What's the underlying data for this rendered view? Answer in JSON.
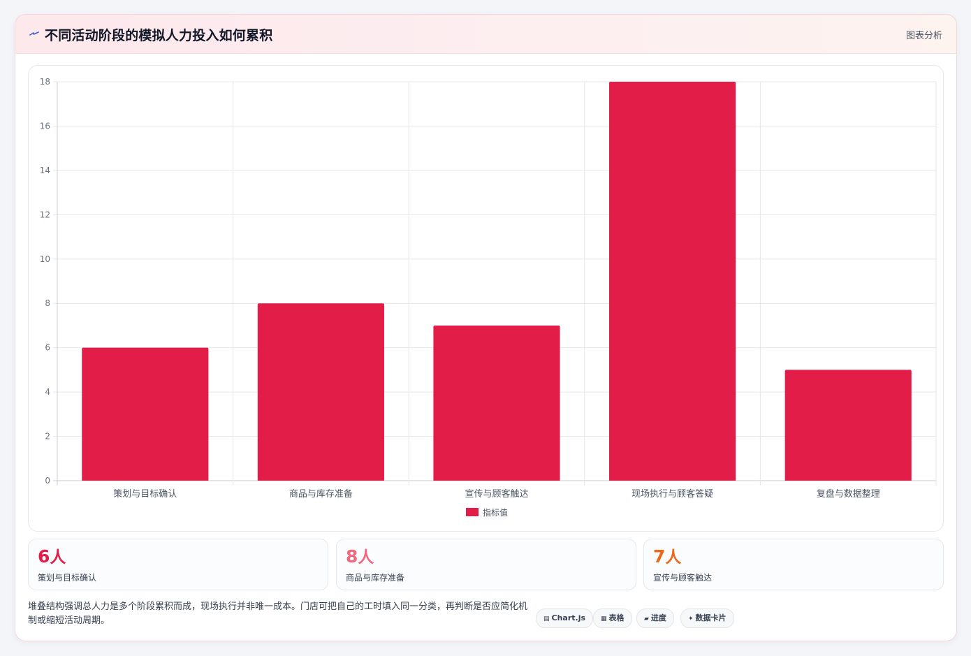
{
  "header": {
    "title": "不同活动阶段的模拟人力投入如何累积",
    "tag": "图表分析"
  },
  "colors": {
    "bar": "#e11d48",
    "stat1": "#e11d48",
    "stat2": "#f0687f",
    "stat3": "#ea6a1a"
  },
  "chart_data": {
    "type": "bar",
    "categories": [
      "策划与目标确认",
      "商品与库存准备",
      "宣传与顾客触达",
      "现场执行与顾客答疑",
      "复盘与数据整理"
    ],
    "series": [
      {
        "name": "指标值",
        "values": [
          6,
          8,
          7,
          18,
          5
        ]
      }
    ],
    "ylim": [
      0,
      18
    ],
    "yticks": [
      0,
      2,
      4,
      6,
      8,
      10,
      12,
      14,
      16,
      18
    ],
    "grid": true,
    "legend": "bottom"
  },
  "stats": [
    {
      "value": "6",
      "unit": "人",
      "label": "策划与目标确认"
    },
    {
      "value": "8",
      "unit": "人",
      "label": "商品与库存准备"
    },
    {
      "value": "7",
      "unit": "人",
      "label": "宣传与顾客触达"
    }
  ],
  "note": "堆叠结构强调总人力是多个阶段累积而成，现场执行并非唯一成本。门店可把自己的工时填入同一分类，再判断是否应简化机制或缩短活动周期。",
  "chips": [
    {
      "icon": "chart-icon",
      "glyph": "▤",
      "label": "Chart.js"
    },
    {
      "icon": "table-icon",
      "glyph": "▦",
      "label": "表格"
    },
    {
      "icon": "progress-icon",
      "glyph": "▰",
      "label": "进度"
    },
    {
      "icon": "sparkle-icon",
      "glyph": "✦",
      "label": "数据卡片"
    }
  ]
}
